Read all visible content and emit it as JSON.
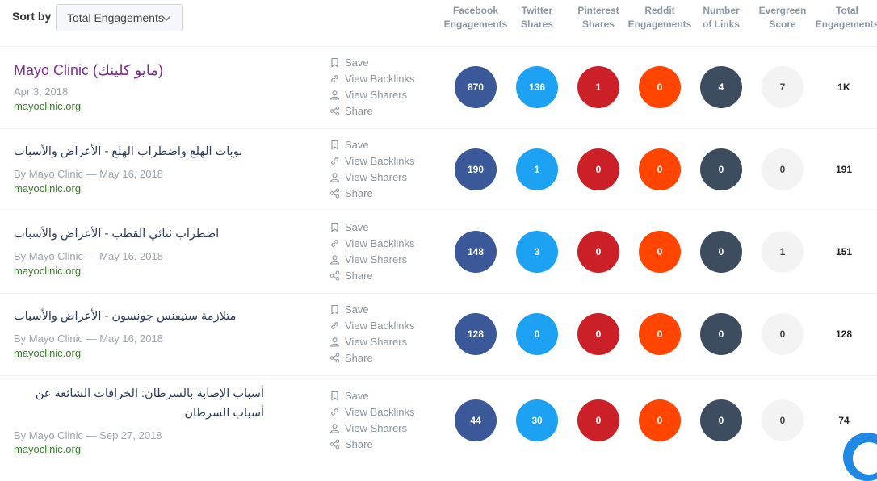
{
  "toolbar": {
    "sort_label": "Sort by",
    "sort_value": "Total Engagements"
  },
  "columns": [
    {
      "line1": "Facebook",
      "line2": "Engagements"
    },
    {
      "line1": "Twitter",
      "line2": "Shares"
    },
    {
      "line1": "Pinterest",
      "line2": "Shares"
    },
    {
      "line1": "Reddit",
      "line2": "Engagements"
    },
    {
      "line1": "Number",
      "line2": "of Links"
    },
    {
      "line1": "Evergreen",
      "line2": "Score"
    },
    {
      "line1": "Total",
      "line2": "Engagements"
    }
  ],
  "actions": {
    "save": "Save",
    "backlinks": "View Backlinks",
    "sharers": "View Sharers",
    "share": "Share"
  },
  "colors": {
    "facebook": "#3b5998",
    "twitter": "#1da1f2",
    "pinterest": "#cb2027",
    "reddit": "#ff4500",
    "links": "#3d4c5e",
    "evergreen": "#f3f3f3"
  },
  "rows": [
    {
      "title": "Mayo Clinic (مايو كلينك)",
      "meta": "Apr 3, 2018",
      "domain": "mayoclinic.org",
      "facebook": "870",
      "twitter": "136",
      "pinterest": "1",
      "reddit": "0",
      "links": "4",
      "evergreen": "7",
      "total": "1K"
    },
    {
      "title": "نوبات الهلع واضطراب الهلع - الأعراض والأسباب",
      "meta": "By Mayo Clinic — May 16, 2018",
      "domain": "mayoclinic.org",
      "facebook": "190",
      "twitter": "1",
      "pinterest": "0",
      "reddit": "0",
      "links": "0",
      "evergreen": "0",
      "total": "191"
    },
    {
      "title": "اضطراب ثنائي القطب - الأعراض والأسباب",
      "meta": "By Mayo Clinic — May 16, 2018",
      "domain": "mayoclinic.org",
      "facebook": "148",
      "twitter": "3",
      "pinterest": "0",
      "reddit": "0",
      "links": "0",
      "evergreen": "1",
      "total": "151"
    },
    {
      "title": "متلازمة ستيفنس جونسون - الأعراض والأسباب",
      "meta": "By Mayo Clinic — May 16, 2018",
      "domain": "mayoclinic.org",
      "facebook": "128",
      "twitter": "0",
      "pinterest": "0",
      "reddit": "0",
      "links": "0",
      "evergreen": "0",
      "total": "128"
    },
    {
      "title": "أسباب الإصابة بالسرطان: الخرافات الشائعة عن أسباب السرطان",
      "meta": "By Mayo Clinic — Sep 27, 2018",
      "domain": "mayoclinic.org",
      "facebook": "44",
      "twitter": "30",
      "pinterest": "0",
      "reddit": "0",
      "links": "0",
      "evergreen": "0",
      "total": "74"
    }
  ]
}
